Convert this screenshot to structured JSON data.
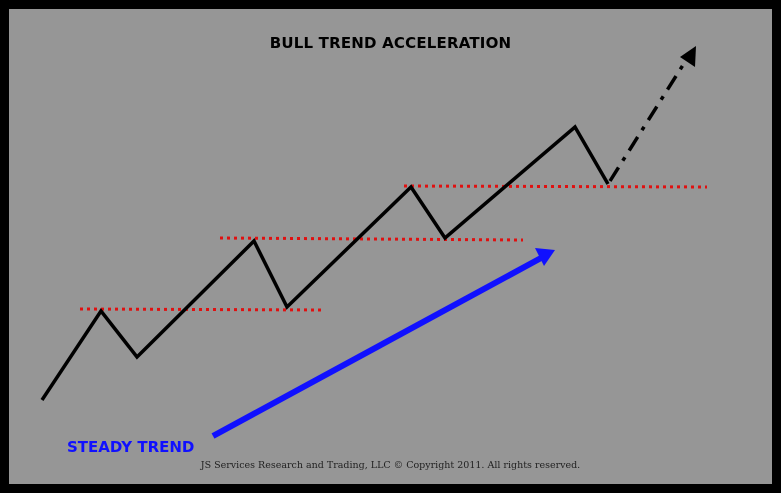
{
  "title": "BULL TREND ACCELERATION",
  "steady_trend_label": "STEADY TREND",
  "copyright": "JS Services Research  and Trading, LLC © Copyright 2011. All rights reserved.",
  "colors": {
    "background": "#969696",
    "border": "#000000",
    "price_line": "#000000",
    "support_lines": "#e01010",
    "trend_arrow": "#1010ff",
    "steady_label": "#1010ff"
  },
  "icons": {
    "projection_arrowhead": "arrow-up-right-icon",
    "trend_arrowhead": "arrow-up-right-icon"
  }
}
